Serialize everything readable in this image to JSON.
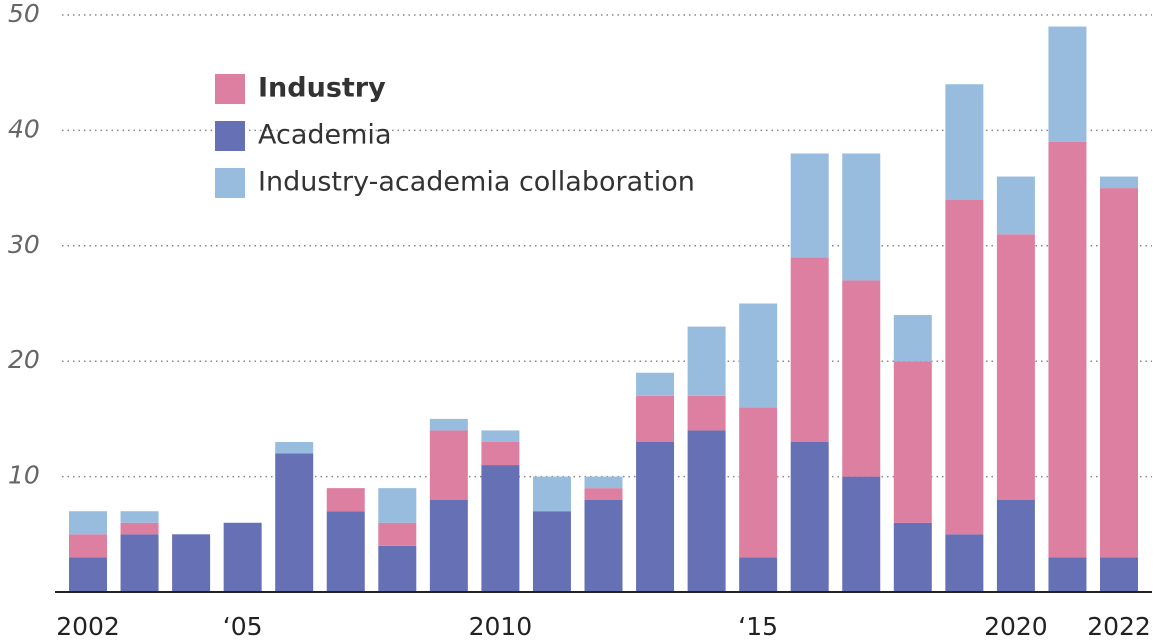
{
  "chart_data": {
    "type": "stacked-bar",
    "categories": [
      "2002",
      null,
      null,
      "‘05",
      null,
      null,
      null,
      null,
      "2010",
      null,
      null,
      null,
      null,
      "‘15",
      null,
      null,
      null,
      null,
      "2020",
      null,
      "2022"
    ],
    "series": [
      {
        "name": "Academia",
        "color": "#6670b4",
        "values": [
          3,
          5,
          5,
          6,
          12,
          7,
          4,
          8,
          11,
          7,
          8,
          13,
          14,
          3,
          13,
          10,
          6,
          5,
          8,
          3,
          3
        ]
      },
      {
        "name": "Industry",
        "color": "#dc7fa0",
        "values": [
          2,
          1,
          0,
          0,
          0,
          2,
          2,
          6,
          2,
          0,
          1,
          4,
          3,
          13,
          16,
          17,
          14,
          29,
          23,
          36,
          32
        ]
      },
      {
        "name": "Industry-academia collaboration",
        "color": "#98bcdd",
        "values": [
          2,
          1,
          0,
          0,
          1,
          0,
          3,
          1,
          1,
          3,
          1,
          2,
          6,
          9,
          9,
          11,
          4,
          10,
          5,
          10,
          1
        ]
      }
    ],
    "ylim": [
      0,
      50
    ],
    "yticks": [
      10,
      20,
      30,
      40,
      50
    ],
    "grid": true
  }
}
